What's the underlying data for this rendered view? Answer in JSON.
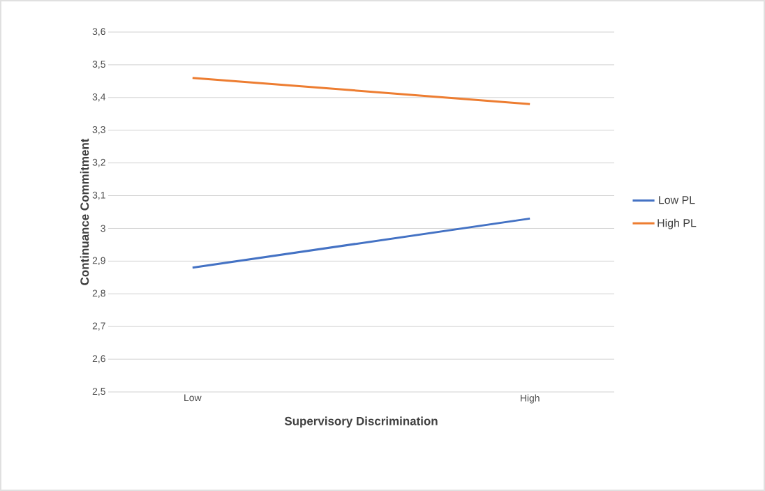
{
  "chart_data": {
    "type": "line",
    "xlabel": "Supervisory Discrimination",
    "ylabel": "Continuance Commitment",
    "categories": [
      "Low",
      "High"
    ],
    "series": [
      {
        "name": "Low PL",
        "color": "#4472c4",
        "values": [
          2.88,
          3.03
        ]
      },
      {
        "name": "High PL",
        "color": "#ed7d31",
        "values": [
          3.46,
          3.38
        ]
      }
    ],
    "ylim": [
      2.5,
      3.6
    ],
    "yticks": [
      {
        "value": 2.5,
        "label": "2,5"
      },
      {
        "value": 2.6,
        "label": "2,6"
      },
      {
        "value": 2.7,
        "label": "2,7"
      },
      {
        "value": 2.8,
        "label": "2,8"
      },
      {
        "value": 2.9,
        "label": "2,9"
      },
      3,
      {
        "value": 3.1,
        "label": "3,1"
      },
      {
        "value": 3.2,
        "label": "3,2"
      },
      {
        "value": 3.3,
        "label": "3,3"
      },
      {
        "value": 3.4,
        "label": "3,4"
      },
      {
        "value": 3.5,
        "label": "3,5"
      },
      {
        "value": 3.6,
        "label": "3,6"
      }
    ],
    "grid": "y",
    "legend": "right",
    "marker": "none",
    "line_style": "solid"
  }
}
